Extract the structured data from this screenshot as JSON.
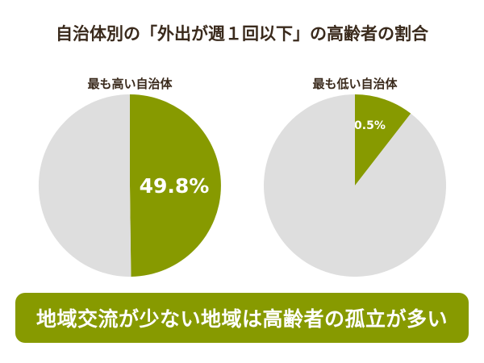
{
  "title": "自治体別の「外出が週１回以下」の高齢者の割合",
  "conclusion": "地域交流が少ない地域は高齢者の孤立が多い",
  "colors": {
    "highlight": "#879a00",
    "rest": "#dedede",
    "text": "#3a2a1c",
    "banner": "#879a00"
  },
  "chart_data": [
    {
      "type": "pie",
      "title": "最も高い自治体",
      "slices": [
        {
          "value": 49.8,
          "label": "49.8%",
          "color": "#879a00"
        },
        {
          "value": 50.2,
          "label": "",
          "color": "#dedede"
        }
      ]
    },
    {
      "type": "pie",
      "title": "最も低い自治体",
      "slices": [
        {
          "value": 10.5,
          "label": "10.5%",
          "color": "#879a00"
        },
        {
          "value": 89.5,
          "label": "",
          "color": "#dedede"
        }
      ]
    }
  ]
}
